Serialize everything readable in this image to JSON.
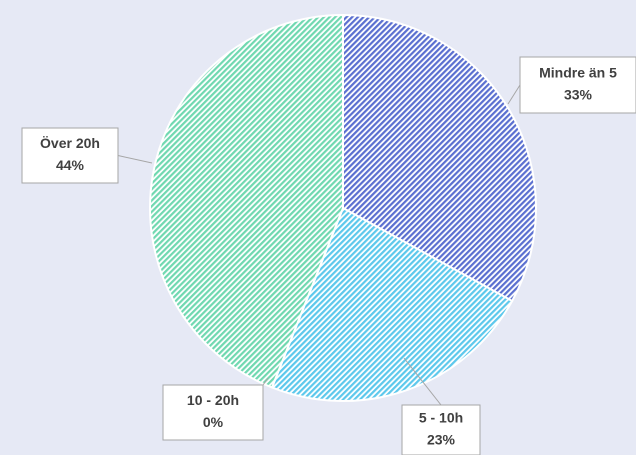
{
  "chart_data": {
    "type": "pie",
    "categories": [
      "Mindre än 5",
      "5 - 10h",
      "10 - 20h",
      "Över 20h"
    ],
    "values": [
      33,
      23,
      0,
      44
    ],
    "value_labels": [
      "33%",
      "23%",
      "0%",
      "44%"
    ],
    "colors": [
      "#5a6fd0",
      "#5cc8ec",
      "#e0e0e0",
      "#6fd8b0"
    ]
  }
}
